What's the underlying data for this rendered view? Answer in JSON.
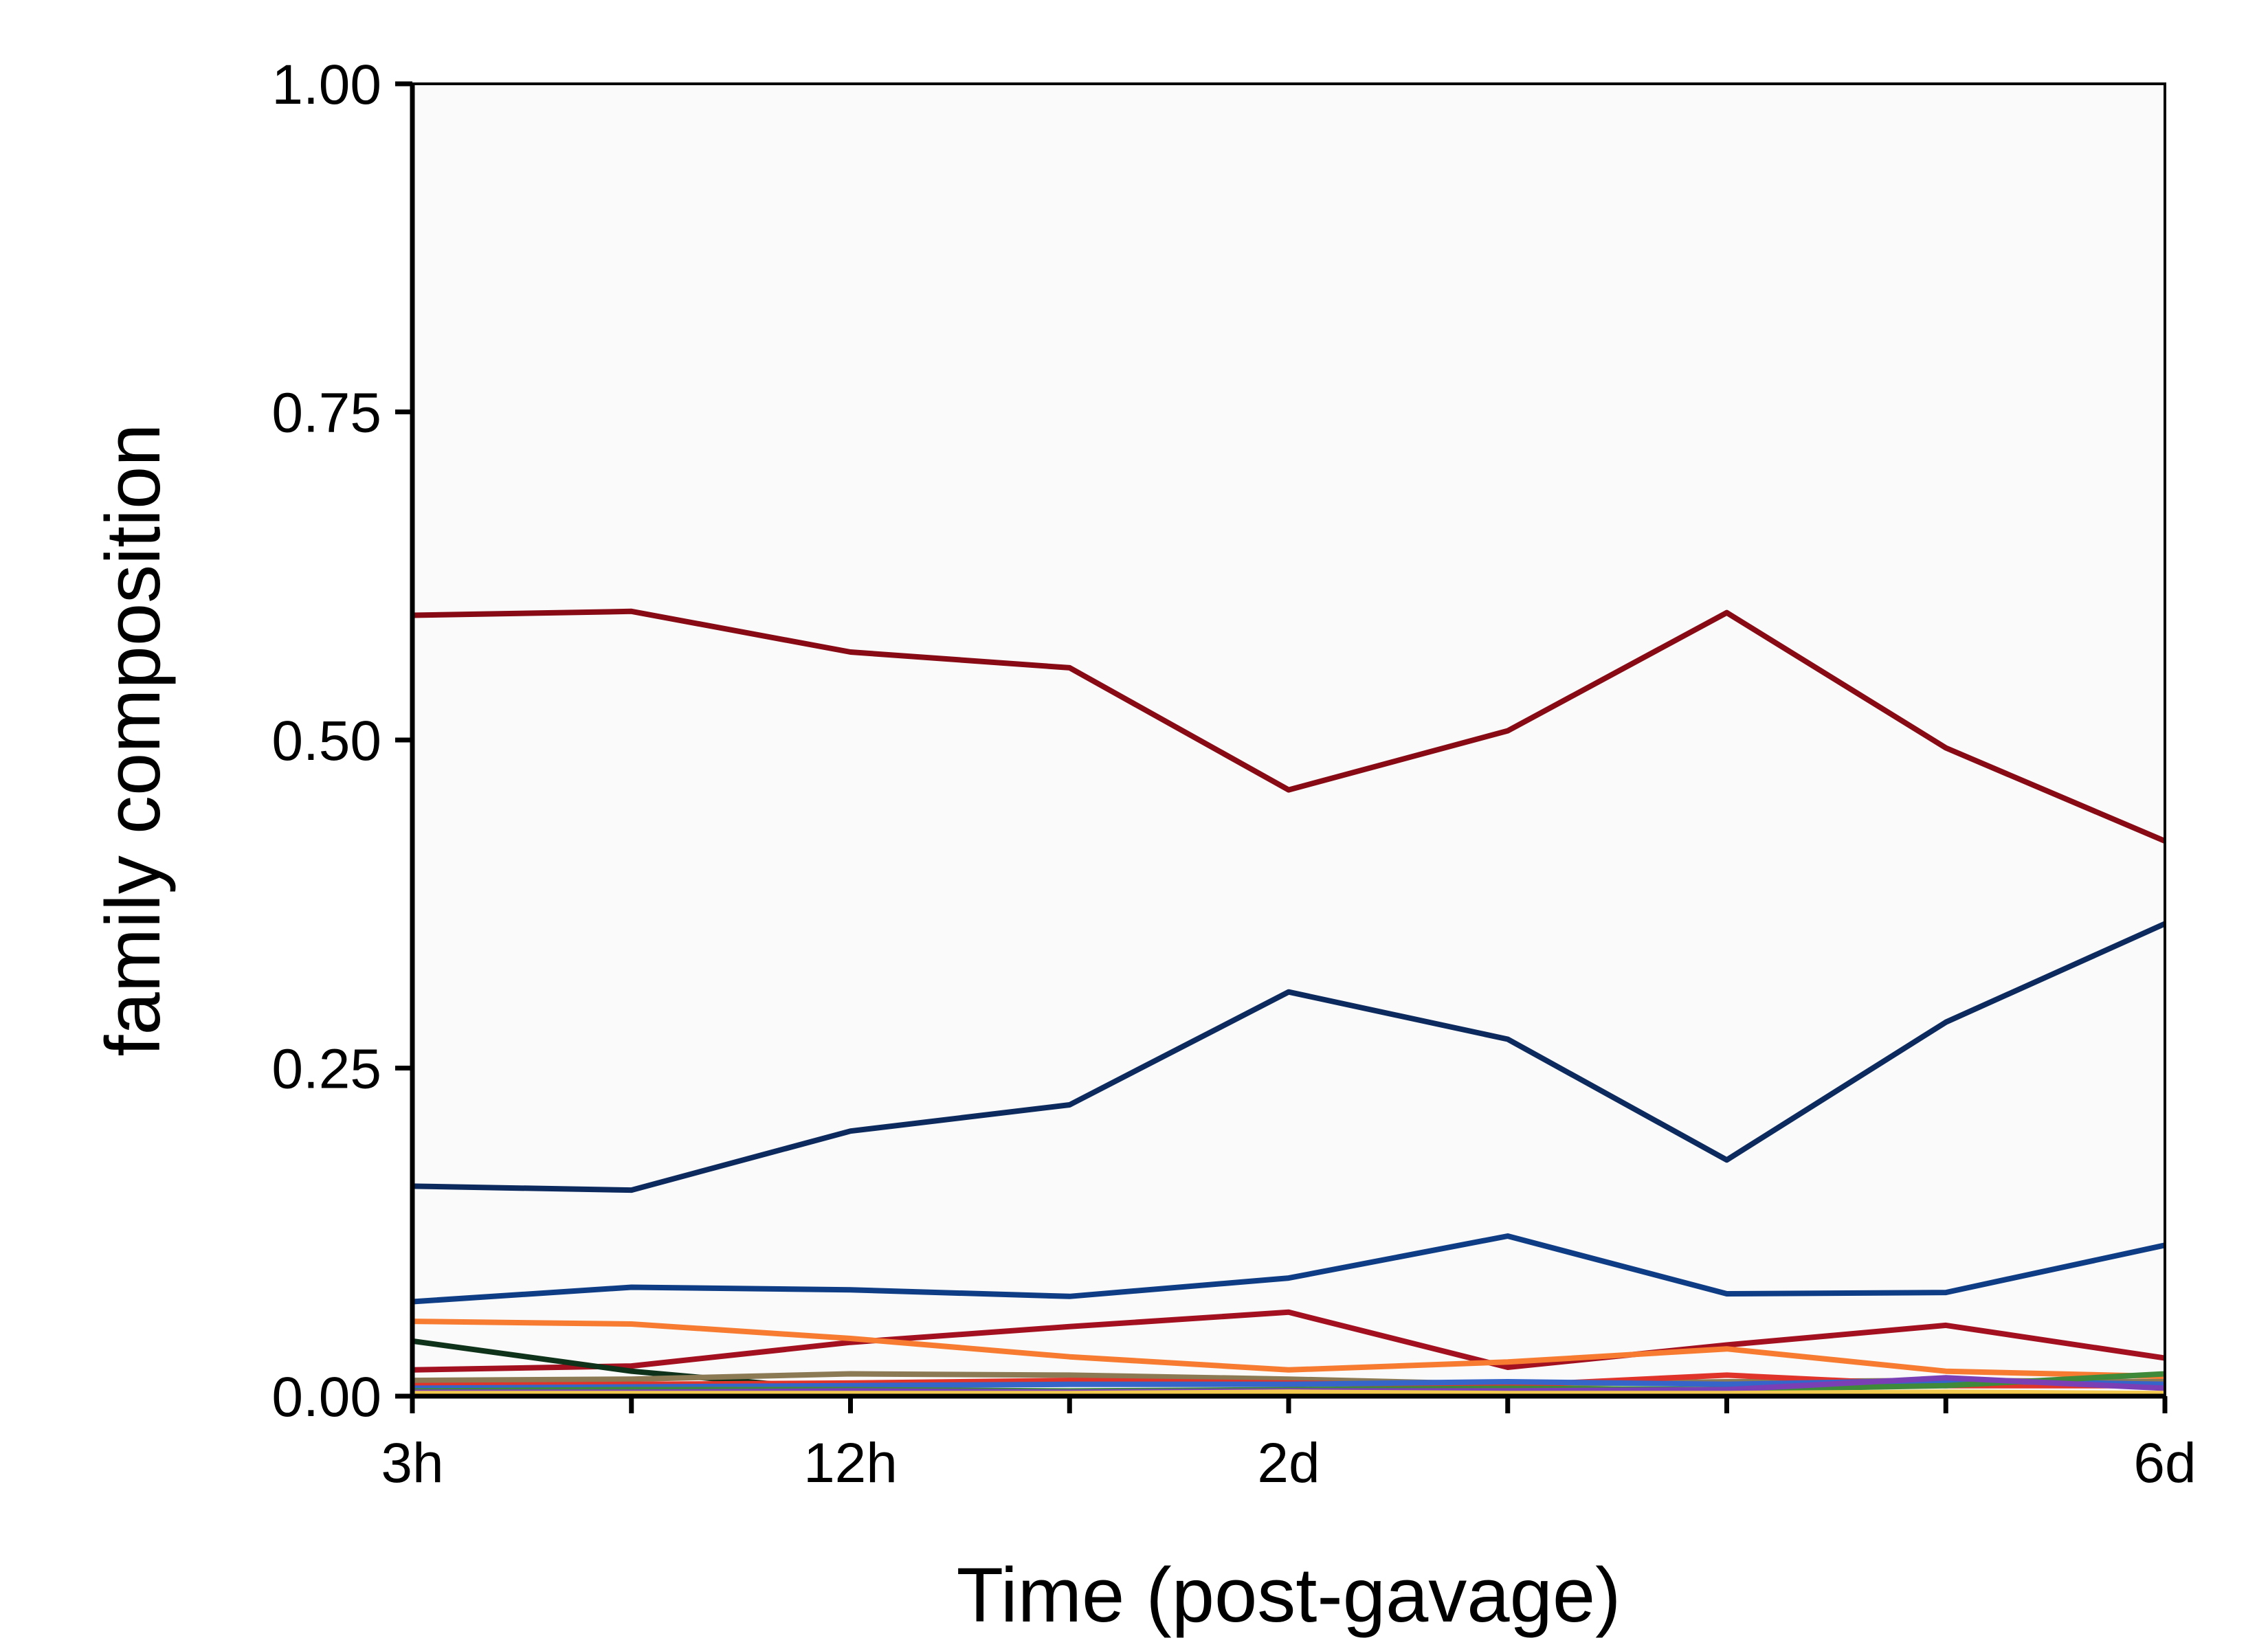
{
  "chart_data": {
    "type": "line",
    "title": "",
    "xlabel": "Time (post-gavage)",
    "ylabel": "family composition",
    "x": [
      0,
      1,
      2,
      3,
      4,
      5,
      6,
      7,
      8
    ],
    "x_tick_labels": [
      "3h",
      "",
      "12h",
      "",
      "2d",
      "",
      "",
      "",
      "6d"
    ],
    "ylim": [
      0,
      1
    ],
    "y_ticks": [
      0.0,
      0.25,
      0.5,
      0.75,
      1.0
    ],
    "y_tick_labels": [
      "0.00",
      "0.25",
      "0.50",
      "0.75",
      "1.00"
    ],
    "grid": false,
    "plot_background": "#fafafa",
    "series": [
      {
        "color": "#870a15",
        "values": [
          0.595,
          0.598,
          0.567,
          0.555,
          0.462,
          0.507,
          0.597,
          0.494,
          0.423
        ]
      },
      {
        "color": "#0d2a5e",
        "values": [
          0.16,
          0.157,
          0.202,
          0.222,
          0.308,
          0.272,
          0.18,
          0.285,
          0.36
        ]
      },
      {
        "color": "#0f3d85",
        "values": [
          0.072,
          0.083,
          0.081,
          0.076,
          0.09,
          0.122,
          0.078,
          0.079,
          0.115
        ]
      },
      {
        "color": "#a3101f",
        "values": [
          0.02,
          0.023,
          0.041,
          0.053,
          0.064,
          0.022,
          0.039,
          0.054,
          0.029
        ]
      },
      {
        "color": "#f77c32",
        "values": [
          0.057,
          0.055,
          0.044,
          0.03,
          0.02,
          0.026,
          0.036,
          0.019,
          0.015
        ]
      },
      {
        "color": "#0f331a",
        "values": [
          0.042,
          0.019,
          0.004,
          0.003,
          0.002,
          0.002,
          0.002,
          0.001,
          0.001
        ]
      },
      {
        "color": "#8c7a55",
        "values": [
          0.012,
          0.013,
          0.017,
          0.016,
          0.013,
          0.009,
          0.011,
          0.012,
          0.011
        ]
      },
      {
        "color": "#e0342a",
        "values": [
          0.008,
          0.009,
          0.01,
          0.012,
          0.01,
          0.008,
          0.016,
          0.008,
          0.008
        ]
      },
      {
        "color": "#3565c9",
        "values": [
          0.006,
          0.007,
          0.008,
          0.009,
          0.009,
          0.011,
          0.009,
          0.012,
          0.009
        ]
      },
      {
        "color": "#3e8a3a",
        "values": [
          0.004,
          0.005,
          0.005,
          0.004,
          0.005,
          0.006,
          0.005,
          0.008,
          0.017
        ]
      },
      {
        "color": "#7a3fb5",
        "values": [
          0.003,
          0.003,
          0.004,
          0.003,
          0.004,
          0.004,
          0.005,
          0.014,
          0.006
        ]
      },
      {
        "color": "#f2c94c",
        "values": [
          0.002,
          0.002,
          0.002,
          0.002,
          0.003,
          0.002,
          0.002,
          0.003,
          0.002
        ]
      }
    ]
  }
}
